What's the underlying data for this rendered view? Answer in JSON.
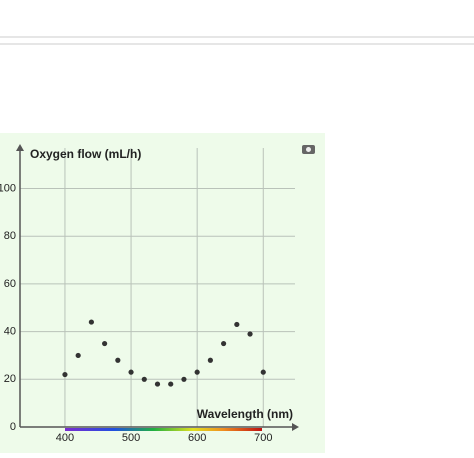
{
  "chart_data": {
    "type": "scatter",
    "y_label": "Oxygen flow (mL/h)",
    "x_label": "Wavelength (nm)",
    "x": [
      400,
      420,
      440,
      460,
      480,
      500,
      520,
      540,
      560,
      580,
      600,
      620,
      640,
      660,
      680,
      700
    ],
    "values": [
      22,
      30,
      44,
      35,
      28,
      23,
      20,
      18,
      18,
      20,
      23,
      28,
      35,
      43,
      39,
      23
    ],
    "color": "#333333",
    "xlim": [
      332,
      748
    ],
    "ylim": [
      0,
      117
    ],
    "xticks": [
      400,
      500,
      600,
      700
    ],
    "yticks": [
      0,
      20,
      40,
      60,
      80,
      100
    ],
    "grid": true
  }
}
